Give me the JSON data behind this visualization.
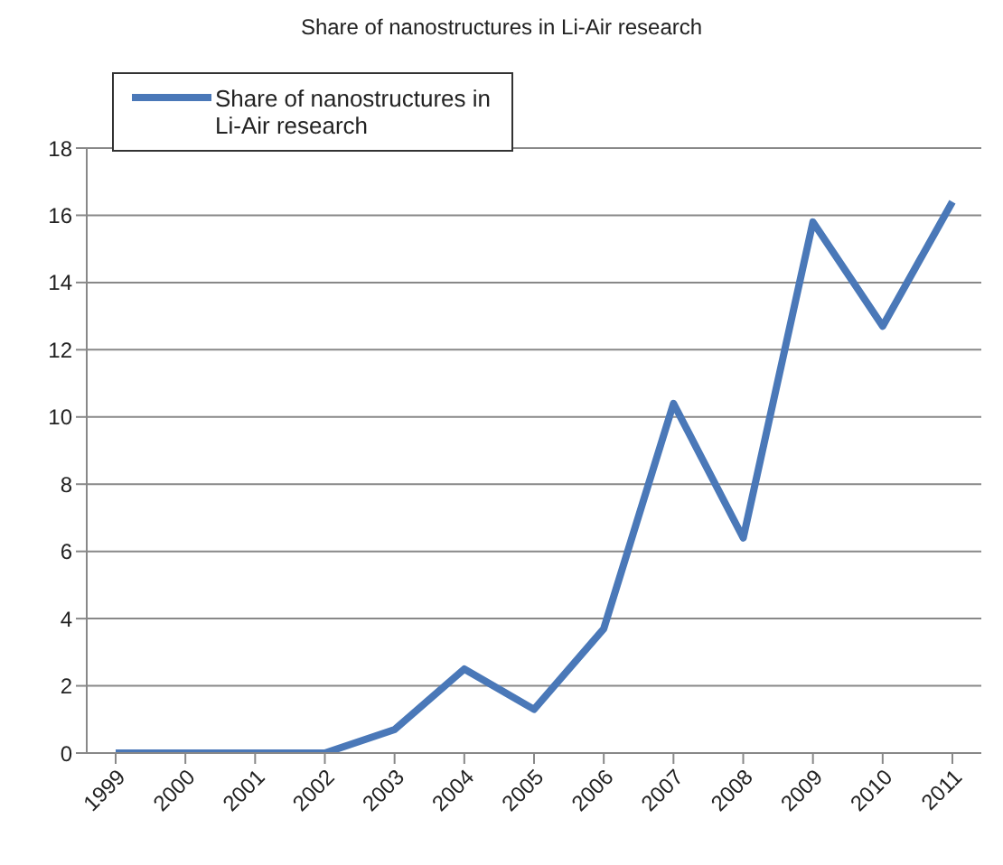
{
  "chart_data": {
    "type": "line",
    "title": "Share of nanostructures in Li-Air research",
    "categories": [
      "1999",
      "2000",
      "2001",
      "2002",
      "2003",
      "2004",
      "2005",
      "2006",
      "2007",
      "2008",
      "2009",
      "2010",
      "2011"
    ],
    "series": [
      {
        "name": "Share of nanostructures in Li-Air research",
        "color": "#4a78b8",
        "values": [
          0,
          0,
          0,
          0,
          0.7,
          2.5,
          1.3,
          3.7,
          10.4,
          6.4,
          15.8,
          12.7,
          16.4
        ]
      }
    ],
    "ylim": [
      0,
      18
    ],
    "yticks": [
      0,
      2,
      4,
      6,
      8,
      10,
      12,
      14,
      16,
      18
    ],
    "grid": "y",
    "legend": "top left",
    "marker": "none",
    "line_style": "solid"
  }
}
